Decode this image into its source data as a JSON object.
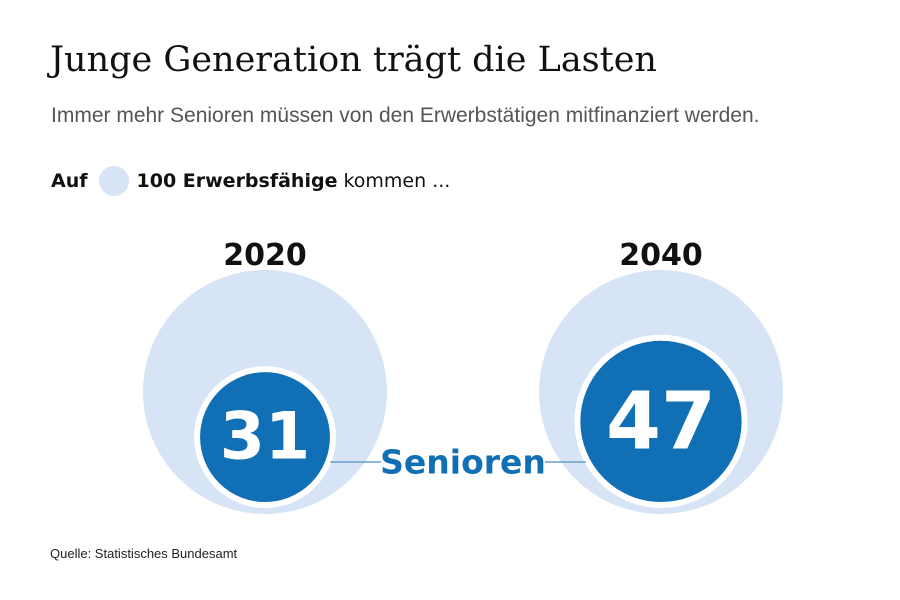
{
  "header": {
    "title": "Junge Generation trägt die Lasten",
    "subtitle": "Immer mehr Senioren müssen von den Erwerbstätigen mitfinanziert werden."
  },
  "legend": {
    "prefix": "Auf",
    "reference_label": "100 Erwerbsfähige",
    "suffix": "kommen ..."
  },
  "source": "Quelle: Statistisches Bundesamt",
  "colors": {
    "reference": "#d6e4f5",
    "senior": "#1170b5",
    "connector": "#6a9ecb",
    "outline": "#ffffff"
  },
  "chart_data": {
    "type": "proportional-circles",
    "reference_value": 100,
    "reference_label": "100 Erwerbsfähige",
    "series_label": "Senioren",
    "categories": [
      "2020",
      "2040"
    ],
    "values": [
      31,
      47
    ]
  }
}
